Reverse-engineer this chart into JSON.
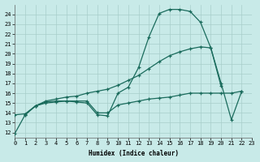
{
  "xlabel": "Humidex (Indice chaleur)",
  "bg_color": "#c8eae8",
  "grid_color": "#a8ceca",
  "line_color": "#1a6b5c",
  "xlim": [
    0,
    23
  ],
  "ylim": [
    11.5,
    25.0
  ],
  "yticks": [
    12,
    13,
    14,
    15,
    16,
    17,
    18,
    19,
    20,
    21,
    22,
    23,
    24
  ],
  "xticks": [
    0,
    1,
    2,
    3,
    4,
    5,
    6,
    7,
    8,
    9,
    10,
    11,
    12,
    13,
    14,
    15,
    16,
    17,
    18,
    19,
    20,
    21,
    22,
    23
  ],
  "lines": [
    {
      "x": [
        0,
        1,
        2,
        3,
        4,
        5,
        6,
        7,
        8,
        9,
        10,
        11,
        12,
        13,
        14,
        15,
        16,
        17,
        18,
        19,
        20,
        21,
        22
      ],
      "y": [
        11.9,
        13.8,
        14.7,
        15.1,
        15.2,
        15.2,
        15.1,
        15.0,
        13.8,
        13.7,
        16.0,
        16.6,
        18.6,
        21.7,
        24.1,
        24.5,
        24.5,
        24.3,
        23.2,
        20.6,
        17.0,
        13.3,
        16.2
      ]
    },
    {
      "x": [
        1,
        2,
        3,
        4,
        5,
        6,
        7,
        8,
        9,
        10,
        11,
        12,
        13,
        14,
        15,
        16,
        17,
        18,
        19,
        20
      ],
      "y": [
        13.8,
        14.7,
        15.2,
        15.4,
        15.6,
        15.7,
        16.0,
        16.2,
        16.4,
        16.8,
        17.3,
        17.8,
        18.5,
        19.2,
        19.8,
        20.2,
        20.5,
        20.7,
        20.6,
        16.7
      ]
    },
    {
      "x": [
        0,
        1,
        2,
        3,
        4,
        5,
        6,
        7,
        8,
        9,
        10,
        11,
        12,
        13,
        14,
        15,
        16,
        17,
        18,
        19,
        20,
        21,
        22
      ],
      "y": [
        13.8,
        13.9,
        14.7,
        15.0,
        15.1,
        15.2,
        15.2,
        15.2,
        14.0,
        14.0,
        14.8,
        15.0,
        15.2,
        15.4,
        15.5,
        15.6,
        15.8,
        16.0,
        16.0,
        16.0,
        16.0,
        16.0,
        16.2
      ]
    }
  ]
}
